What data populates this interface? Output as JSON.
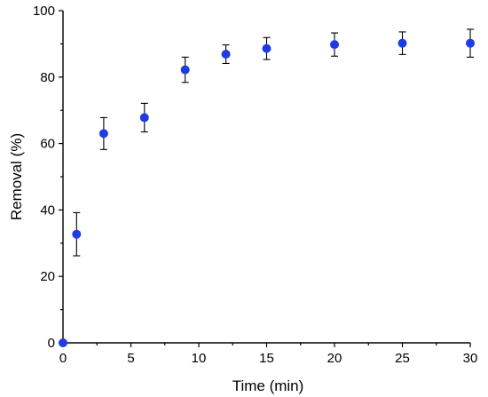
{
  "chart_data": {
    "type": "scatter",
    "xlabel": "Time (min)",
    "ylabel": "Removal (%)",
    "xlim": [
      0,
      30
    ],
    "ylim": [
      0,
      100
    ],
    "xticks": [
      0,
      5,
      10,
      15,
      20,
      25,
      30
    ],
    "yticks": [
      0,
      20,
      40,
      60,
      80,
      100
    ],
    "grid": false,
    "series": [
      {
        "color": "#1f3be6",
        "points": [
          {
            "x": 0,
            "y": 0,
            "err": 0
          },
          {
            "x": 1,
            "y": 32.7,
            "err": 6.5
          },
          {
            "x": 3,
            "y": 63.0,
            "err": 4.8
          },
          {
            "x": 6,
            "y": 67.8,
            "err": 4.3
          },
          {
            "x": 9,
            "y": 82.2,
            "err": 3.8
          },
          {
            "x": 12,
            "y": 86.9,
            "err": 2.8
          },
          {
            "x": 15,
            "y": 88.6,
            "err": 3.3
          },
          {
            "x": 20,
            "y": 89.8,
            "err": 3.5
          },
          {
            "x": 25,
            "y": 90.2,
            "err": 3.4
          },
          {
            "x": 30,
            "y": 90.2,
            "err": 4.2
          }
        ]
      }
    ]
  }
}
